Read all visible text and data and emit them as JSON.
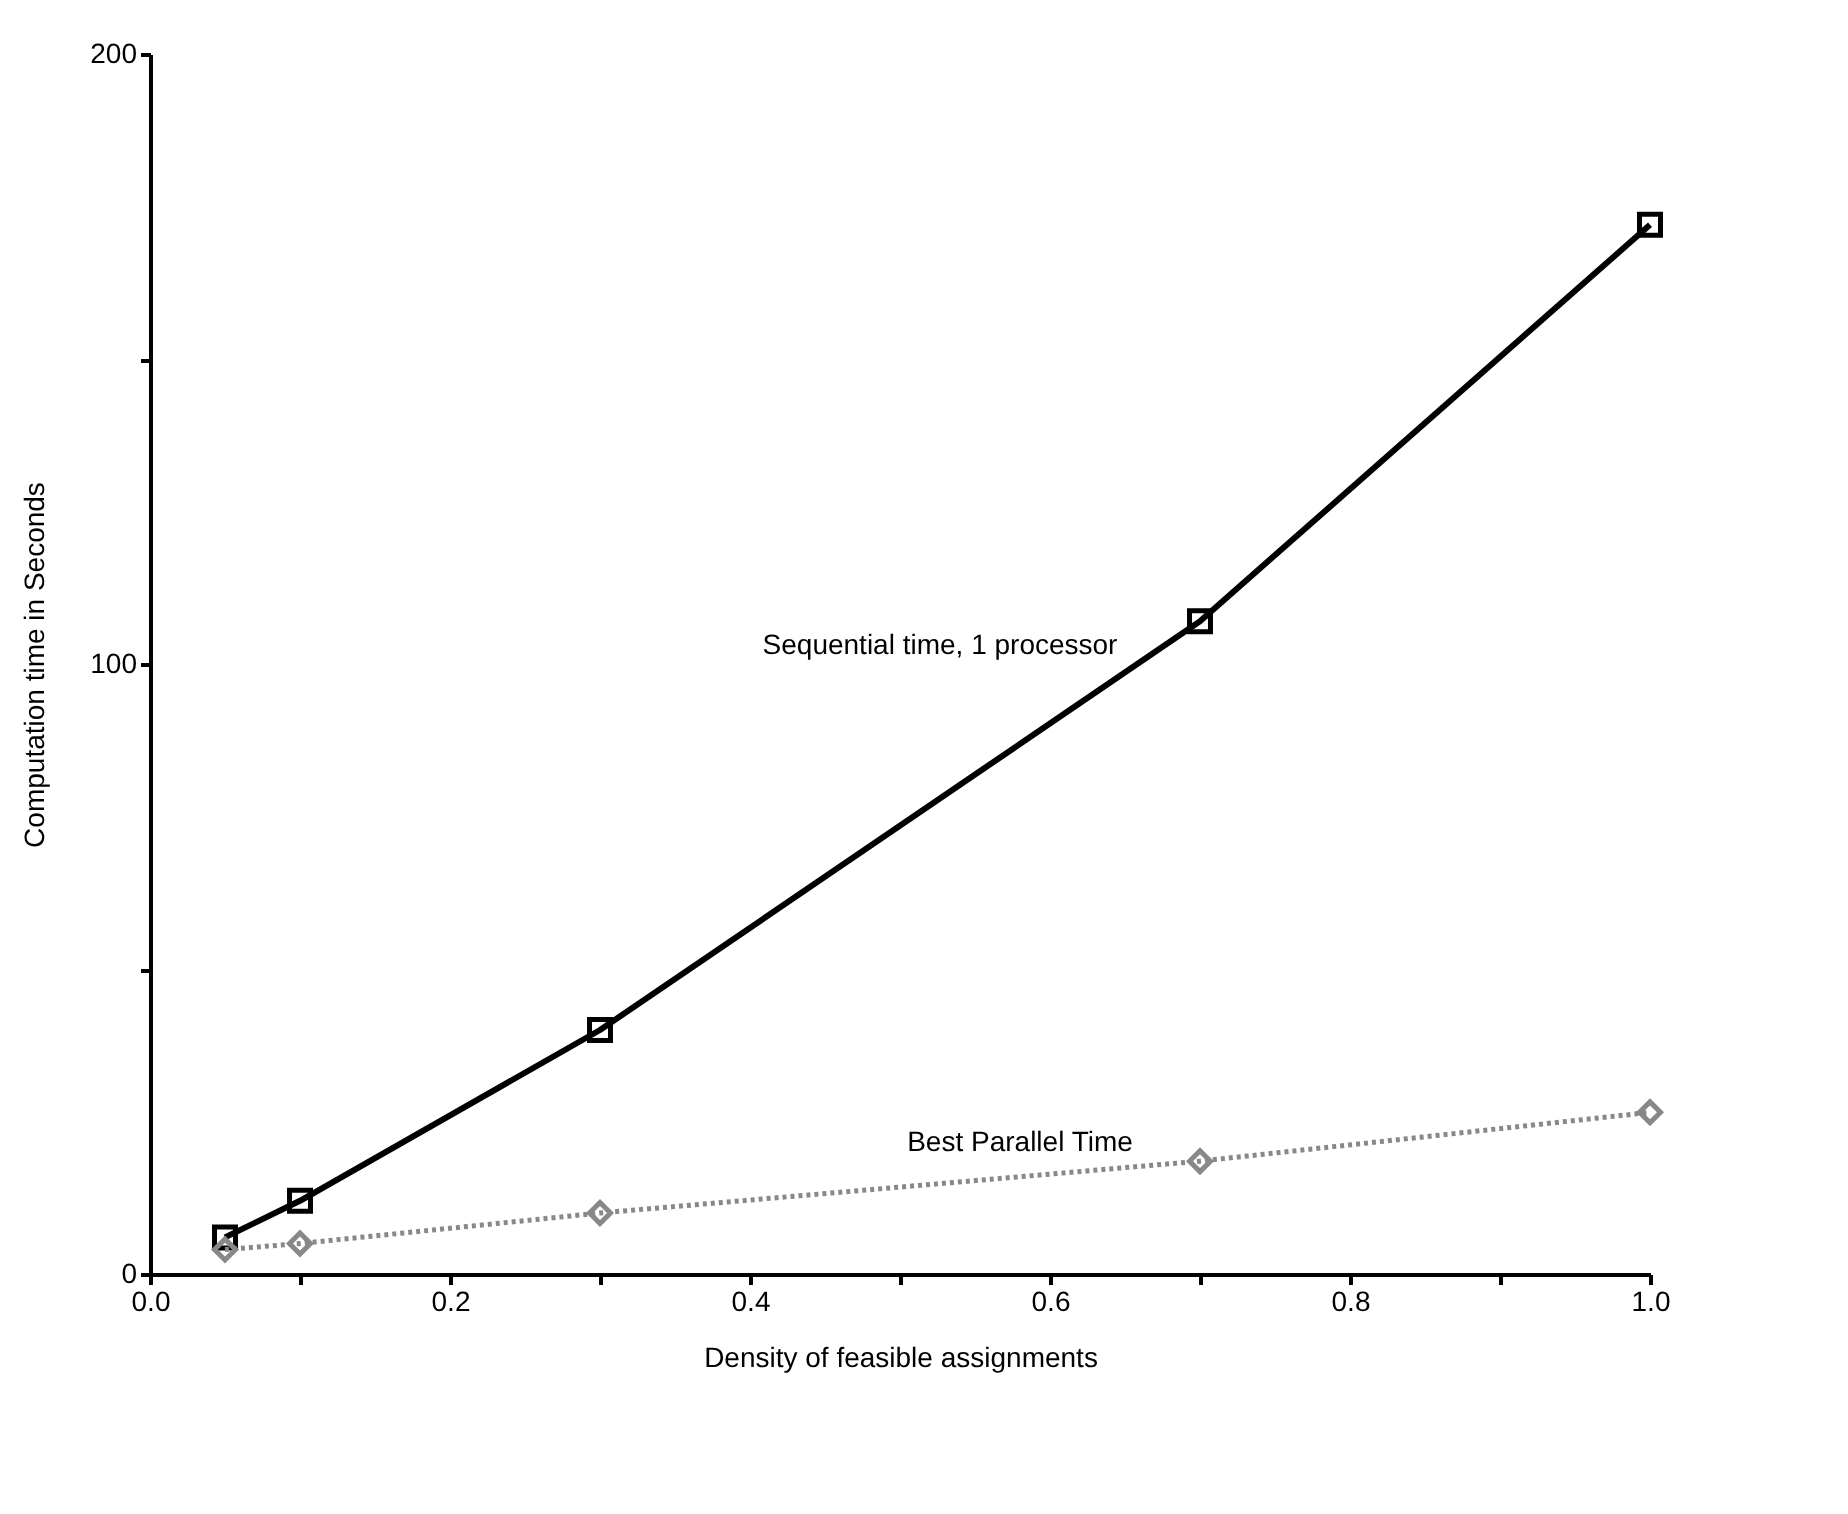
{
  "chart_data": {
    "type": "line",
    "xlabel": "Density of feasible assignments",
    "ylabel": "Computation time in Seconds",
    "x": [
      0.05,
      0.1,
      0.3,
      0.7,
      1.0
    ],
    "series": [
      {
        "name": "Sequential time, 1 processor",
        "color": "#000000",
        "marker": "square",
        "line_style": "solid",
        "values": [
          6,
          12,
          40,
          107,
          172
        ]
      },
      {
        "name": "Best Parallel Time",
        "color": "#888888",
        "marker": "diamond",
        "line_style": "dotted",
        "values": [
          4,
          5,
          10,
          18.5,
          26.5
        ]
      }
    ],
    "xlim": [
      0,
      1.0
    ],
    "ylim": [
      0,
      200
    ],
    "xticks": [
      {
        "value": 0,
        "label": "0.0"
      },
      {
        "value": 0.1,
        "label": null
      },
      {
        "value": 0.2,
        "label": "0.2"
      },
      {
        "value": 0.3,
        "label": null
      },
      {
        "value": 0.4,
        "label": "0.4"
      },
      {
        "value": 0.5,
        "label": null
      },
      {
        "value": 0.6,
        "label": "0.6"
      },
      {
        "value": 0.7,
        "label": null
      },
      {
        "value": 0.8,
        "label": "0.8"
      },
      {
        "value": 0.9,
        "label": null
      },
      {
        "value": 1.0,
        "label": "1.0"
      }
    ],
    "yticks": [
      0,
      {
        "value": 50,
        "label": null
      },
      100,
      {
        "value": 150,
        "label": null
      },
      200
    ],
    "grid": false
  }
}
